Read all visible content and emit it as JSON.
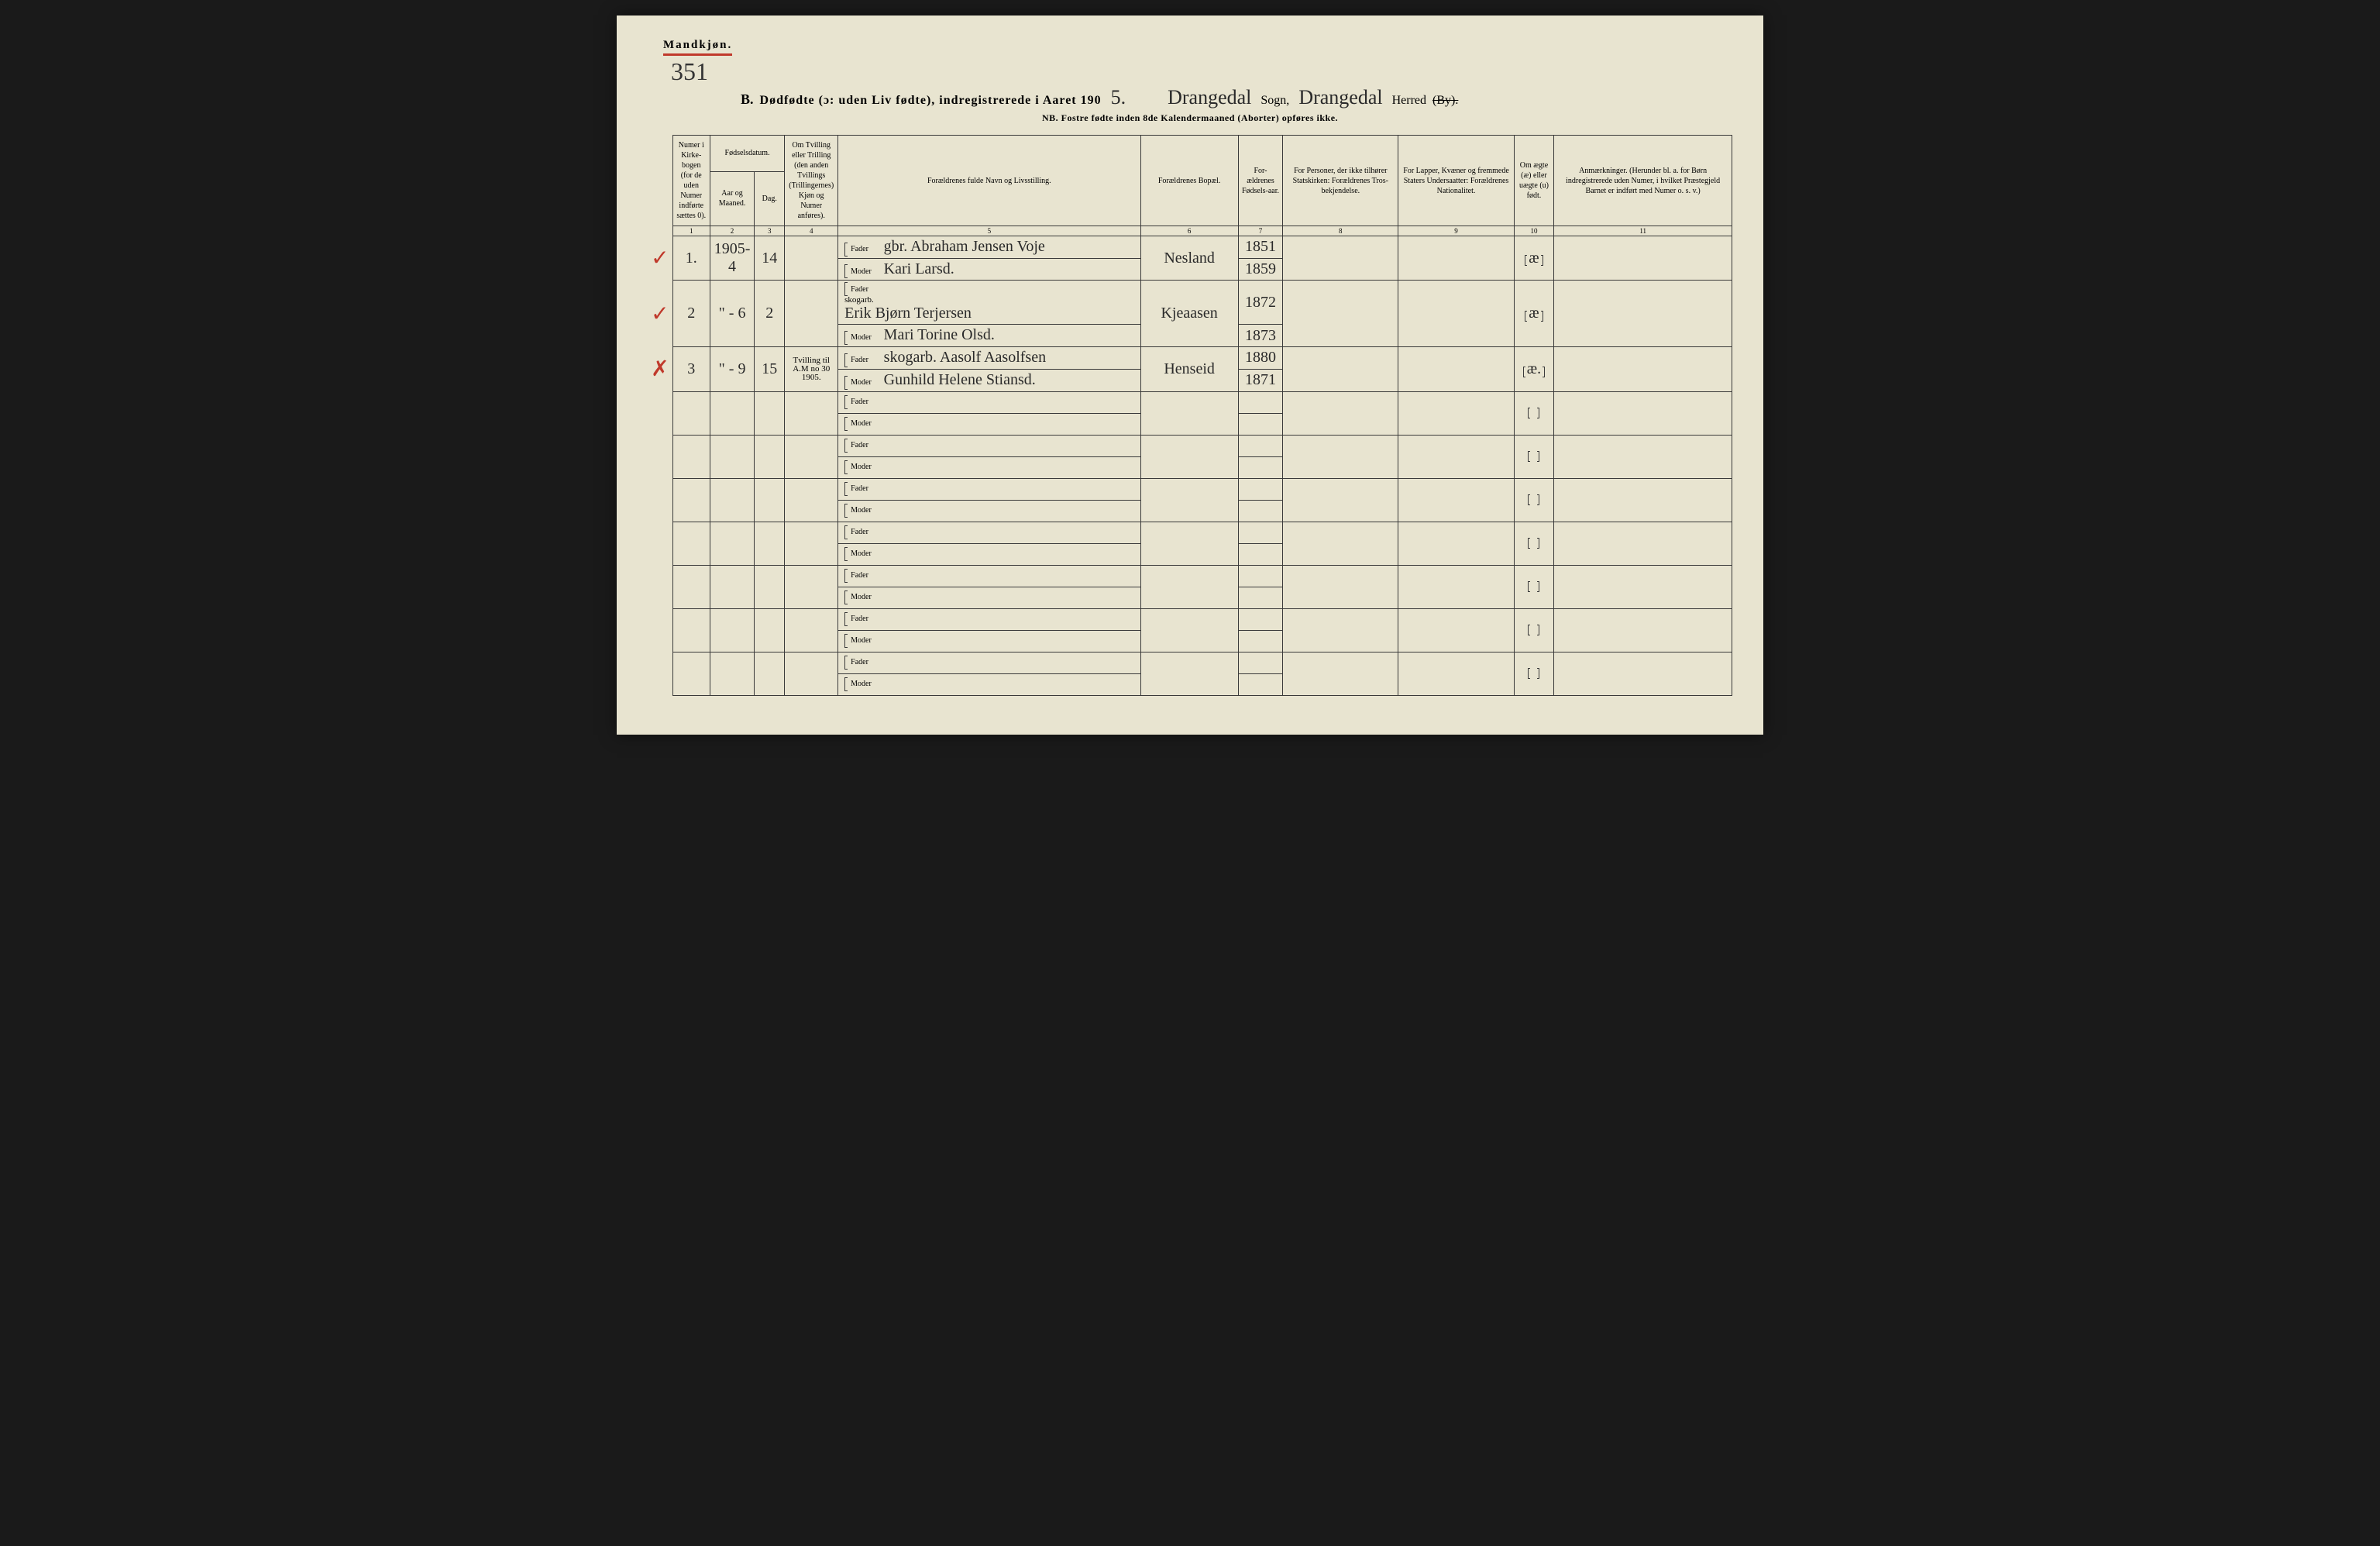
{
  "header": {
    "gender": "Mandkjøn.",
    "page_number": "351",
    "section_letter": "B.",
    "title_prefix": "Dødfødte (ɔ: uden Liv fødte), indregistrerede i Aaret 190",
    "year_suffix": "5.",
    "parish_value": "Drangedal",
    "parish_label": "Sogn,",
    "district_value": "Drangedal",
    "district_label_herred": "Herred",
    "district_label_by": "(By).",
    "subtitle": "NB. Fostre fødte inden 8de Kalendermaaned (Aborter) opføres ikke."
  },
  "columns": {
    "c1": "Numer i Kirke-bogen (for de uden Numer indførte sættes 0).",
    "c2a": "Fødselsdatum.",
    "c2": "Aar og Maaned.",
    "c3": "Dag.",
    "c4": "Om Tvilling eller Trilling (den anden Tvillings (Trillingernes) Kjøn og Numer anføres).",
    "c5": "Forældrenes fulde Navn og Livsstilling.",
    "c6": "Forældrenes Bopæl.",
    "c7": "For-ældrenes Fødsels-aar.",
    "c8": "For Personer, der ikke tilhører Statskirken: Forældrenes Tros-bekjendelse.",
    "c9": "For Lapper, Kvæner og fremmede Staters Undersaatter: Forældrenes Nationalitet.",
    "c10": "Om ægte (æ) eller uægte (u) født.",
    "c11": "Anmærkninger. (Herunder bl. a. for Børn indregistrerede uden Numer, i hvilket Præstegjeld Barnet er indført med Numer o. s. v.)",
    "father": "Fader",
    "mother": "Moder"
  },
  "colnums": [
    "1",
    "2",
    "3",
    "4",
    "5",
    "6",
    "7",
    "8",
    "9",
    "10",
    "11"
  ],
  "rows": [
    {
      "check": "✓",
      "num": "1.",
      "year_month": "1905- 4",
      "day": "14",
      "twin": "",
      "father": "gbr. Abraham Jensen Voje",
      "father_note": "",
      "mother": "Kari Larsd.",
      "residence": "Nesland",
      "father_year": "1851",
      "mother_year": "1859",
      "legit": "æ"
    },
    {
      "check": "✓",
      "num": "2",
      "year_month": "\" - 6",
      "day": "2",
      "twin": "",
      "father": "Erik Bjørn Terjersen",
      "father_note": "skogarb.",
      "mother": "Mari Torine Olsd.",
      "residence": "Kjeaasen",
      "father_year": "1872",
      "mother_year": "1873",
      "legit": "æ"
    },
    {
      "check": "✗",
      "num": "3",
      "year_month": "\" - 9",
      "day": "15",
      "twin": "Tvilling til A.M no 30 1905.",
      "father": "skogarb. Aasolf Aasolfsen",
      "father_note": "",
      "mother": "Gunhild Helene Stiansd.",
      "residence": "Henseid",
      "father_year": "1880",
      "mother_year": "1871",
      "legit": "æ."
    }
  ],
  "empty_row_count": 7,
  "colors": {
    "paper": "#e8e4d0",
    "ink": "#2a2a2a",
    "red": "#c0392b",
    "border": "#3a3a3a"
  },
  "typography": {
    "body_family": "Georgia, 'Times New Roman', serif",
    "cursive_family": "'Brush Script MT', cursive",
    "header_fontsize": 10,
    "title_fontsize": 16,
    "handwritten_fontsize": 20
  }
}
